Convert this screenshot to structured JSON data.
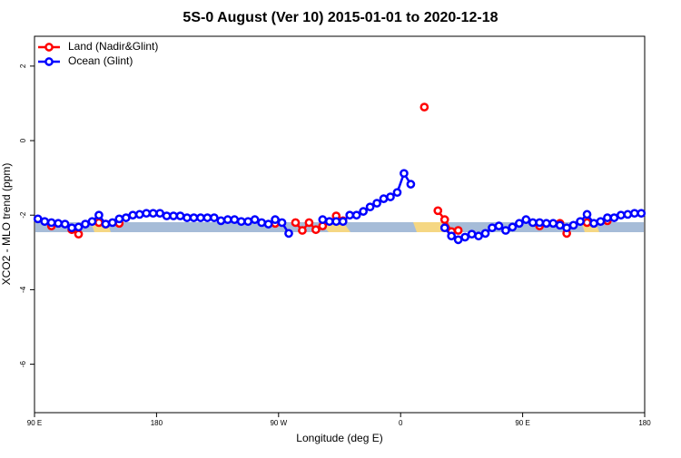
{
  "chart_data": {
    "type": "line",
    "title": "5S-0 August (Ver 10)   2015-01-01 to 2020-12-18",
    "xlabel": "Longitude (deg E)",
    "ylabel": "XCO2 - MLO trend (ppm)",
    "xlim": [
      90,
      540
    ],
    "xticks": [
      {
        "value": 90,
        "label": "90 E"
      },
      180,
      {
        "value": 270,
        "label": "90 W"
      },
      {
        "value": 360,
        "label": "0"
      },
      {
        "value": 450,
        "label": "90 E"
      },
      {
        "value": 540,
        "label": "180"
      }
    ],
    "ylim": [
      -7.3,
      2.8
    ],
    "yticks": [
      -6,
      -4,
      -2,
      0,
      2
    ],
    "legend": "top-left",
    "series": [
      {
        "name": "Land (Nadir&Glint)",
        "color": "#ff0000",
        "x": [
          102.5,
          117.5,
          122.5,
          137.5,
          142.5,
          152.5,
          267.5,
          282.5,
          287.5,
          292.5,
          297.5,
          302.5,
          312.5,
          317.5,
          377.5,
          387.5,
          392.5,
          397.5,
          402.5,
          462.5,
          477.5,
          482.5,
          497.5,
          512.5
        ],
        "values": [
          -2.29,
          -2.39,
          -2.51,
          -2.2,
          -2.24,
          -2.22,
          -2.22,
          -2.2,
          -2.41,
          -2.2,
          -2.39,
          -2.29,
          -2.02,
          -2.15,
          0.9,
          -1.88,
          -2.12,
          -2.44,
          -2.41,
          -2.29,
          -2.22,
          -2.49,
          -2.2,
          -2.15
        ]
      },
      {
        "name": "Ocean (Glint)",
        "color": "#0000ff",
        "x": [
          92.5,
          97.5,
          102.5,
          107.5,
          112.5,
          117.5,
          122.5,
          127.5,
          132.5,
          137.5,
          142.5,
          147.5,
          152.5,
          157.5,
          162.5,
          167.5,
          172.5,
          177.5,
          182.5,
          187.5,
          192.5,
          197.5,
          202.5,
          207.5,
          212.5,
          217.5,
          222.5,
          227.5,
          232.5,
          237.5,
          242.5,
          247.5,
          252.5,
          257.5,
          262.5,
          267.5,
          272.5,
          277.5,
          302.5,
          307.5,
          312.5,
          317.5,
          322.5,
          327.5,
          332.5,
          337.5,
          342.5,
          347.5,
          352.5,
          357.5,
          362.5,
          367.5,
          392.5,
          397.5,
          402.5,
          407.5,
          412.5,
          417.5,
          422.5,
          427.5,
          432.5,
          437.5,
          442.5,
          447.5,
          452.5,
          457.5,
          462.5,
          467.5,
          472.5,
          477.5,
          482.5,
          487.5,
          492.5,
          497.5,
          502.5,
          507.5,
          512.5,
          517.5,
          522.5,
          527.5,
          532.5,
          537.5
        ],
        "values": [
          -2.1,
          -2.17,
          -2.2,
          -2.22,
          -2.24,
          -2.34,
          -2.32,
          -2.24,
          -2.17,
          -2.0,
          -2.24,
          -2.2,
          -2.1,
          -2.07,
          -2.0,
          -1.98,
          -1.95,
          -1.95,
          -1.95,
          -2.02,
          -2.02,
          -2.02,
          -2.07,
          -2.07,
          -2.07,
          -2.07,
          -2.07,
          -2.15,
          -2.12,
          -2.12,
          -2.17,
          -2.17,
          -2.12,
          -2.2,
          -2.24,
          -2.12,
          -2.2,
          -2.49,
          -2.12,
          -2.17,
          -2.17,
          -2.17,
          -2.0,
          -2.0,
          -1.9,
          -1.78,
          -1.68,
          -1.56,
          -1.51,
          -1.39,
          -0.88,
          -1.17,
          -2.34,
          -2.56,
          -2.66,
          -2.59,
          -2.51,
          -2.56,
          -2.49,
          -2.34,
          -2.29,
          -2.41,
          -2.32,
          -2.22,
          -2.12,
          -2.2,
          -2.2,
          -2.22,
          -2.22,
          -2.27,
          -2.34,
          -2.27,
          -2.17,
          -1.98,
          -2.22,
          -2.17,
          -2.07,
          -2.07,
          -2.0,
          -1.98,
          -1.95,
          -1.95
        ]
      }
    ]
  }
}
